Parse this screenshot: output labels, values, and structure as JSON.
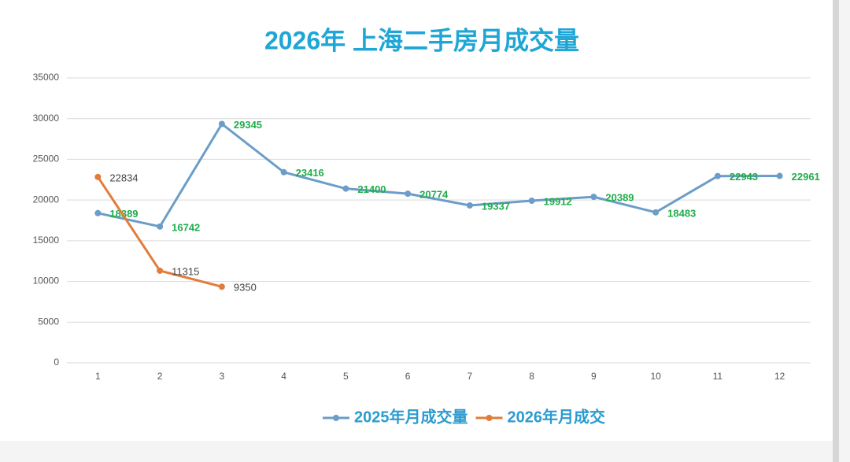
{
  "chart_data": {
    "type": "line",
    "title": "2026年 上海二手房月成交量",
    "categories": [
      "1",
      "2",
      "3",
      "4",
      "5",
      "6",
      "7",
      "8",
      "9",
      "10",
      "11",
      "12"
    ],
    "series": [
      {
        "name": "2025年月成交量",
        "color": "#6b9dc8",
        "label_color": "#1fad4a",
        "values": [
          18389,
          16742,
          29345,
          23416,
          21400,
          20774,
          19337,
          19912,
          20389,
          18483,
          22943,
          22961
        ]
      },
      {
        "name": "2026年月成交",
        "color": "#e27c3a",
        "label_color": "#444444",
        "values": [
          22834,
          11315,
          9350,
          null,
          null,
          null,
          null,
          null,
          null,
          null,
          null,
          null
        ]
      }
    ],
    "ylim": [
      0,
      35000
    ],
    "yticks": [
      0,
      5000,
      10000,
      15000,
      20000,
      25000,
      30000,
      35000
    ],
    "grid": true,
    "legend": "bottom"
  }
}
